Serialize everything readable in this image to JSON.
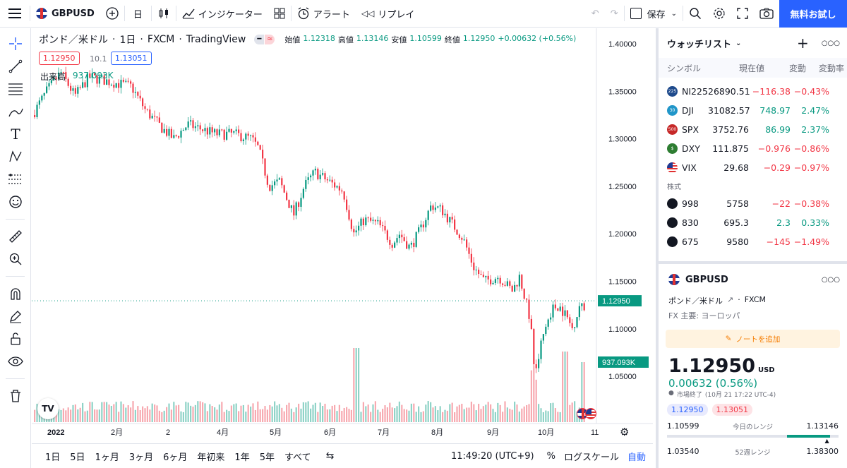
{
  "toolbar": {
    "symbol": "GBPUSD",
    "interval": "日",
    "indicators": "インジケーター",
    "alert": "アラート",
    "replay": "リプレイ",
    "save": "保存",
    "trial": "無料お試し"
  },
  "legend": {
    "title": "ポンド／米ドル",
    "interval": "1日",
    "exchange": "FXCM",
    "source": "TradingView",
    "open_label": "始値",
    "open": "1.12318",
    "high_label": "高値",
    "high": "1.13146",
    "low_label": "安値",
    "low": "1.10599",
    "close_label": "終値",
    "close": "1.12950",
    "change": "+0.00632 (+0.56%)",
    "bid": "1.12950",
    "spread": "10.1",
    "ask": "1.13051",
    "volume_label": "出来高",
    "volume_value": "937.093K"
  },
  "price_axis": {
    "ticks": [
      "1.40000",
      "1.35000",
      "1.30000",
      "1.25000",
      "1.20000",
      "1.15000",
      "1.10000",
      "1.05000"
    ],
    "last_price": "1.12950",
    "last_volume": "937.093K"
  },
  "time_axis": [
    "2022",
    "2月",
    "2",
    "4月",
    "5月",
    "6月",
    "7月",
    "8月",
    "9月",
    "10月",
    "11"
  ],
  "bottom": {
    "ranges": [
      "1日",
      "5日",
      "1ヶ月",
      "3ヶ月",
      "6ヶ月",
      "年初来",
      "1年",
      "5年",
      "すべて"
    ],
    "time": "11:49:20 (UTC+9)",
    "percent": "%",
    "log": "ログスケール",
    "auto": "自動"
  },
  "watchlist": {
    "title": "ウォッチリスト",
    "columns": [
      "シンボル",
      "現在値",
      "変動",
      "変動率"
    ],
    "rows": [
      {
        "sym": "NI225",
        "price": "26890.51",
        "chg": "−116.38",
        "pct": "−0.43%",
        "dir": "neg",
        "icon": "225",
        "color": "#1e4a8c"
      },
      {
        "sym": "DJI",
        "price": "31082.57",
        "chg": "748.97",
        "pct": "2.47%",
        "dir": "pos",
        "icon": "30",
        "color": "#2196c9"
      },
      {
        "sym": "SPX",
        "price": "3752.76",
        "chg": "86.99",
        "pct": "2.37%",
        "dir": "pos",
        "icon": "500",
        "color": "#c62828"
      },
      {
        "sym": "DXY",
        "price": "111.875",
        "chg": "−0.976",
        "pct": "−0.86%",
        "dir": "neg",
        "icon": "$",
        "color": "#2e7d32"
      },
      {
        "sym": "VIX",
        "price": "29.68",
        "chg": "−0.29",
        "pct": "−0.97%",
        "dir": "neg",
        "icon": "us",
        "color": "#1f3a93"
      }
    ],
    "section": "株式",
    "stocks": [
      {
        "sym": "998",
        "price": "5758",
        "chg": "−22",
        "pct": "−0.38%",
        "dir": "neg",
        "color": "#131722"
      },
      {
        "sym": "830",
        "price": "695.3",
        "chg": "2.3",
        "pct": "0.33%",
        "dir": "pos",
        "color": "#131722"
      },
      {
        "sym": "675",
        "price": "9580",
        "chg": "−145",
        "pct": "−1.49%",
        "dir": "neg",
        "color": "#131722"
      }
    ]
  },
  "details": {
    "symbol": "GBPUSD",
    "name": "ポンド／米ドル",
    "exchange": "FXCM",
    "category": "FX 主要: ヨーロッパ",
    "note_button": "ノートを追加",
    "price": "1.12950",
    "currency": "USD",
    "change": "0.00632 (0.56%)",
    "status": "市場終了",
    "timestamp": "(10月 21 17:22 UTC-4)",
    "bid": "1.12950",
    "ask": "1.13051",
    "day_low": "1.10599",
    "day_label": "今日のレンジ",
    "day_high": "1.13146",
    "year_low": "1.03540",
    "year_label": "52週レンジ",
    "year_high": "1.38300"
  },
  "colors": {
    "up": "#089981",
    "down": "#f23645",
    "accent": "#2962ff"
  }
}
